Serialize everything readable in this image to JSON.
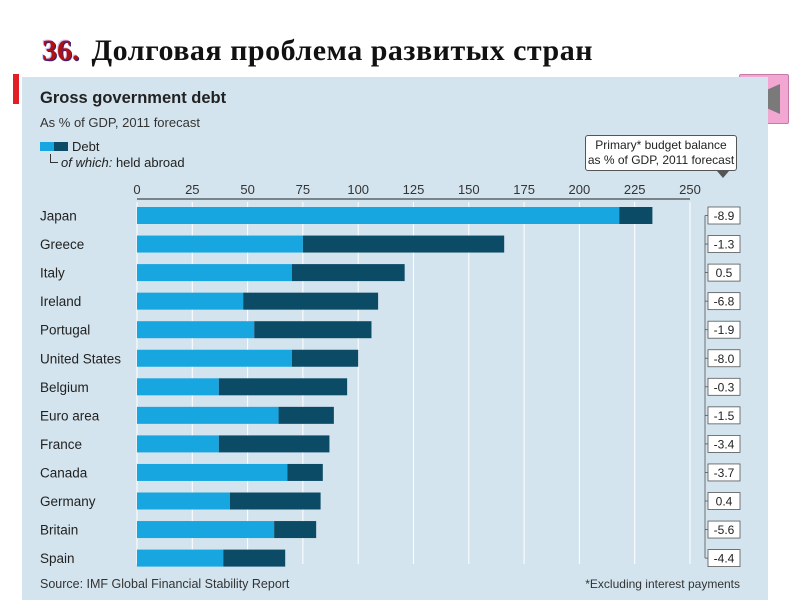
{
  "slide": {
    "number": "36.",
    "title": "Долговая проблема развитых стран"
  },
  "nav": {
    "icon": "triangle-left-icon"
  },
  "chart_data": {
    "type": "bar",
    "orientation": "horizontal",
    "stacked": true,
    "title": "Gross government debt",
    "subtitle": "As % of GDP, 2011 forecast",
    "legend": {
      "debt_label": "Debt",
      "held_abroad_prefix": "of which:",
      "held_abroad_suffix": "held abroad"
    },
    "balance_header_line1": "Primary* budget balance",
    "balance_header_line2": "as % of GDP, 2011 forecast",
    "xlim": [
      0,
      250
    ],
    "xticks": [
      "0",
      "25",
      "50",
      "75",
      "100",
      "125",
      "150",
      "175",
      "200",
      "225",
      "250"
    ],
    "categories": [
      "Japan",
      "Greece",
      "Italy",
      "Ireland",
      "Portugal",
      "United States",
      "Belgium",
      "Euro area",
      "France",
      "Canada",
      "Germany",
      "Britain",
      "Spain"
    ],
    "series": [
      {
        "name": "Debt",
        "values": [
          233,
          166,
          121,
          109,
          106,
          100,
          95,
          89,
          87,
          84,
          83,
          81,
          67
        ]
      },
      {
        "name": "of which: held abroad",
        "values": [
          15,
          91,
          51,
          61,
          53,
          30,
          58,
          25,
          50,
          16,
          41,
          19,
          28
        ]
      }
    ],
    "balance_values": [
      "-8.9",
      "-1.3",
      "0.5",
      "-6.8",
      "-1.9",
      "-8.0",
      "-0.3",
      "-1.5",
      "-3.4",
      "-3.7",
      "0.4",
      "-5.6",
      "-4.4"
    ],
    "source": "Source: IMF Global Financial Stability Report",
    "footnote": "*Excluding interest payments",
    "colors": {
      "panel": "#d3e4ee",
      "debt": "#17a6df",
      "held_abroad": "#0c4b66",
      "grid": "#ffffff"
    }
  }
}
